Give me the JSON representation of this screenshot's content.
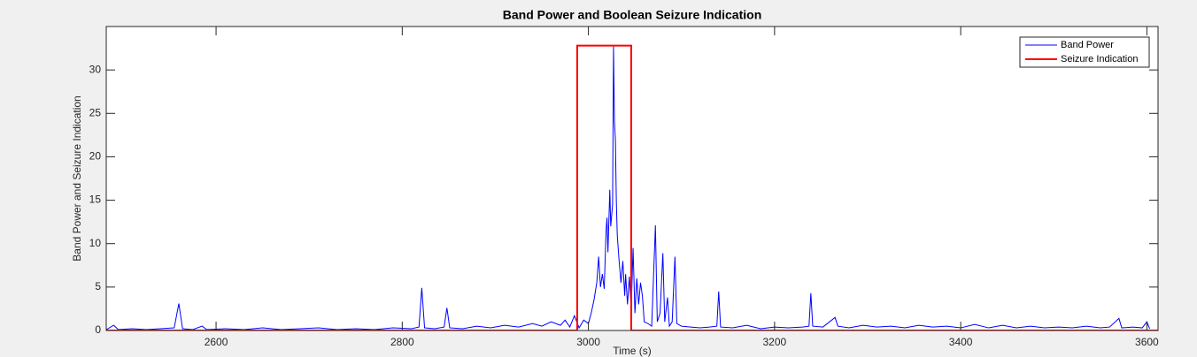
{
  "chart_data": {
    "type": "line",
    "title": "Band Power and Boolean Seizure Indication",
    "x_label": "Time (s)",
    "y_label": "Band Power and Seizure Indication",
    "xlim": [
      2482,
      3612
    ],
    "xticks": [
      2600,
      2800,
      3000,
      3200,
      3400,
      3600
    ],
    "ylim": [
      0,
      35
    ],
    "yticks": [
      0,
      5,
      10,
      15,
      20,
      25,
      30
    ],
    "grid": false,
    "legend": "top-right",
    "series": [
      {
        "name": "Band Power",
        "color": "#0000ff",
        "x": [
          2482,
          2490,
          2495,
          2510,
          2525,
          2540,
          2555,
          2560,
          2564,
          2575,
          2585,
          2590,
          2610,
          2630,
          2650,
          2670,
          2690,
          2710,
          2730,
          2750,
          2770,
          2790,
          2810,
          2818,
          2821,
          2824,
          2835,
          2845,
          2848,
          2851,
          2865,
          2880,
          2895,
          2910,
          2925,
          2940,
          2950,
          2960,
          2970,
          2975,
          2980,
          2985,
          2990,
          2995,
          3000,
          3003,
          3006,
          3009,
          3011,
          3013,
          3015,
          3017,
          3019,
          3020,
          3021,
          3023,
          3024,
          3026,
          3027,
          3028,
          3029,
          3030,
          3031,
          3033,
          3035,
          3037,
          3039,
          3040,
          3042,
          3044,
          3046,
          3048,
          3050,
          3052,
          3054,
          3056,
          3058,
          3060,
          3064,
          3068,
          3072,
          3074,
          3077,
          3080,
          3082,
          3085,
          3087,
          3090,
          3093,
          3095,
          3100,
          3110,
          3120,
          3130,
          3138,
          3140,
          3142,
          3155,
          3170,
          3185,
          3200,
          3215,
          3230,
          3237,
          3239,
          3241,
          3252,
          3265,
          3268,
          3280,
          3295,
          3310,
          3325,
          3340,
          3355,
          3370,
          3385,
          3400,
          3415,
          3430,
          3445,
          3460,
          3475,
          3490,
          3505,
          3520,
          3535,
          3550,
          3560,
          3570,
          3573,
          3585,
          3595,
          3600,
          3603
        ],
        "values": [
          0.1,
          0.6,
          0.1,
          0.2,
          0.1,
          0.2,
          0.3,
          3.1,
          0.2,
          0.1,
          0.5,
          0.1,
          0.2,
          0.1,
          0.3,
          0.1,
          0.2,
          0.3,
          0.1,
          0.2,
          0.1,
          0.3,
          0.2,
          0.4,
          4.9,
          0.3,
          0.2,
          0.4,
          2.6,
          0.3,
          0.2,
          0.5,
          0.3,
          0.6,
          0.4,
          0.8,
          0.5,
          1.0,
          0.6,
          1.2,
          0.4,
          1.7,
          0.3,
          1.2,
          0.8,
          2.0,
          3.5,
          5.5,
          8.5,
          5.0,
          6.5,
          4.8,
          11.5,
          13.0,
          9.0,
          16.2,
          12.0,
          14.5,
          32.7,
          24.0,
          22.0,
          15.0,
          11.0,
          8.0,
          5.5,
          8.0,
          4.0,
          6.5,
          3.0,
          6.2,
          2.5,
          9.5,
          2.0,
          6.0,
          3.0,
          5.5,
          4.0,
          1.0,
          0.8,
          0.5,
          12.1,
          1.0,
          2.0,
          8.9,
          1.0,
          3.8,
          0.5,
          1.0,
          8.5,
          0.8,
          0.5,
          0.4,
          0.3,
          0.4,
          0.5,
          4.5,
          0.4,
          0.3,
          0.6,
          0.2,
          0.4,
          0.3,
          0.4,
          0.5,
          4.3,
          0.5,
          0.4,
          1.5,
          0.5,
          0.3,
          0.6,
          0.4,
          0.5,
          0.3,
          0.6,
          0.4,
          0.5,
          0.3,
          0.7,
          0.3,
          0.6,
          0.3,
          0.5,
          0.3,
          0.4,
          0.3,
          0.5,
          0.3,
          0.4,
          1.4,
          0.3,
          0.4,
          0.3,
          1.0,
          0.2
        ]
      },
      {
        "name": "Seizure Indication",
        "color": "#ff0000",
        "x": [
          2482,
          2988,
          2988,
          3046,
          3046,
          3612
        ],
        "values": [
          0,
          0,
          32.8,
          32.8,
          0,
          0
        ]
      }
    ]
  }
}
